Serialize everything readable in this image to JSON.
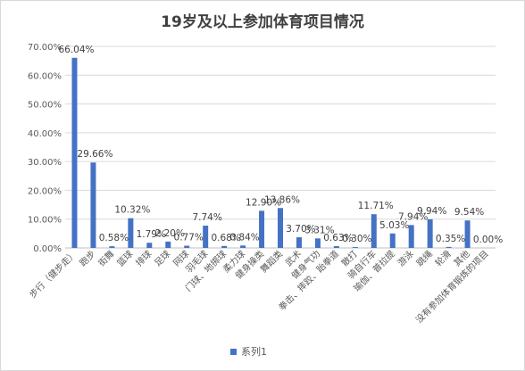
{
  "chart_data": {
    "type": "bar",
    "title": "19岁及以上参加体育项目情况",
    "categories": [
      "步行（健步走）",
      "跑步",
      "街舞",
      "篮球",
      "排球",
      "足球",
      "网球",
      "羽毛球",
      "门球、地掷球",
      "柔力球",
      "健身操类",
      "舞蹈类",
      "武术",
      "健身气功",
      "拳击、摔跤、跆拳道",
      "散打",
      "骑自行车",
      "瑜伽、普拉提",
      "游泳",
      "跳绳",
      "轮滑",
      "其他",
      "没有参加体育锻炼的项目"
    ],
    "series": [
      {
        "name": "系列1",
        "values": [
          66.04,
          29.66,
          0.58,
          10.32,
          1.79,
          2.2,
          0.77,
          7.74,
          0.68,
          0.84,
          12.9,
          13.86,
          3.7,
          3.31,
          0.63,
          0.3,
          11.71,
          5.03,
          7.94,
          9.94,
          0.35,
          9.54,
          0.0
        ],
        "labels": [
          "66.04%",
          "29.66%",
          "0.58%",
          "10.32%",
          "1.79%",
          "2.20%",
          "0.77%",
          "7.74%",
          "0.68%",
          "0.84%",
          "12.90%",
          "13.86%",
          "3.70%",
          "3.31%",
          "0.63%",
          "0.30%",
          "11.71%",
          "5.03%",
          "7.94%",
          "9.94%",
          "0.35%",
          "9.54%",
          "0.00%"
        ]
      }
    ],
    "yticks": [
      "0.00%",
      "10.00%",
      "20.00%",
      "30.00%",
      "40.00%",
      "50.00%",
      "60.00%",
      "70.00%"
    ],
    "ylim": [
      0,
      70
    ],
    "grid": true,
    "legend_position": "bottom",
    "color": "#4472c4"
  }
}
